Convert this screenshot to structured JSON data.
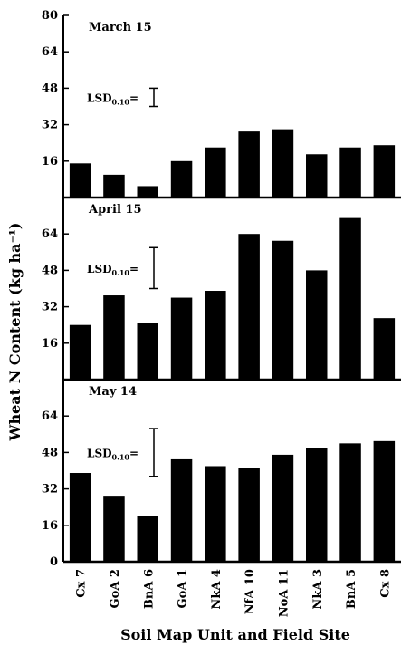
{
  "chart_data": {
    "type": "bar",
    "xlabel": "Soil Map Unit and Field Site",
    "ylabel": "Wheat N Content (kg ha⁻¹)",
    "categories": [
      "Cx 7",
      "GoA 2",
      "BnA 6",
      "GoA 1",
      "NkA 4",
      "NfA 10",
      "NoA 11",
      "NkA 3",
      "BnA 5",
      "Cx 8"
    ],
    "ylim": [
      0,
      80
    ],
    "yticks": [
      0,
      16,
      32,
      48,
      64,
      80
    ],
    "lsd_label": "LSD",
    "lsd_subscript": "0.10",
    "lsd_suffix": "=",
    "panels": [
      {
        "title": "March 15",
        "values": [
          15,
          10,
          5,
          16,
          22,
          29,
          30,
          19,
          22,
          23
        ],
        "lsd_center": 44,
        "lsd_range": 8
      },
      {
        "title": "April 15",
        "values": [
          24,
          37,
          25,
          36,
          39,
          64,
          61,
          48,
          71,
          27
        ],
        "lsd_center": 49,
        "lsd_range": 18
      },
      {
        "title": "May 14",
        "values": [
          39,
          29,
          20,
          45,
          42,
          41,
          47,
          50,
          52,
          53
        ],
        "lsd_center": 48,
        "lsd_range": 21
      }
    ]
  }
}
